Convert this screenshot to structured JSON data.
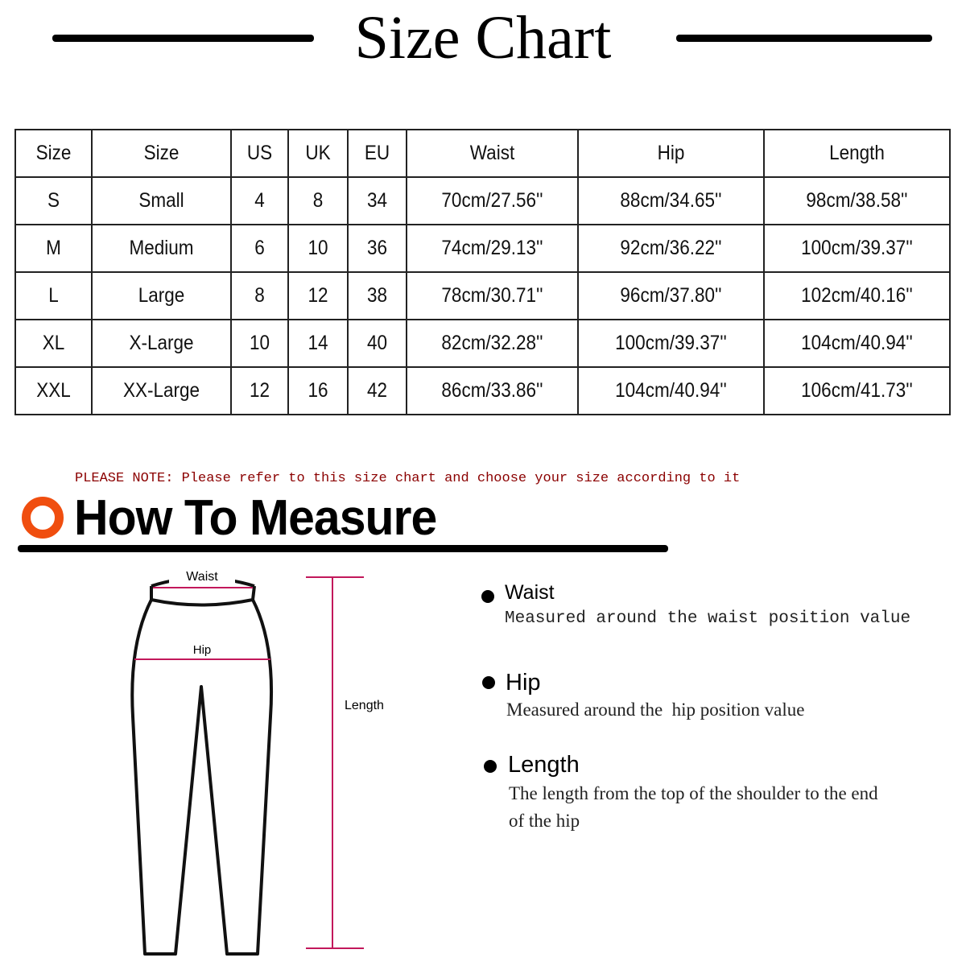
{
  "title": "Size Chart",
  "table": {
    "headers": [
      "Size",
      "Size",
      "US",
      "UK",
      "EU",
      "Waist",
      "Hip",
      "Length"
    ],
    "rows": [
      [
        "S",
        "Small",
        "4",
        "8",
        "34",
        "70cm/27.56''",
        "88cm/34.65''",
        "98cm/38.58''"
      ],
      [
        "M",
        "Medium",
        "6",
        "10",
        "36",
        "74cm/29.13''",
        "92cm/36.22''",
        "100cm/39.37''"
      ],
      [
        "L",
        "Large",
        "8",
        "12",
        "38",
        "78cm/30.71''",
        "96cm/37.80''",
        "102cm/40.16''"
      ],
      [
        "XL",
        "X-Large",
        "10",
        "14",
        "40",
        "82cm/32.28''",
        "100cm/39.37''",
        "104cm/40.94''"
      ],
      [
        "XXL",
        "XX-Large",
        "12",
        "16",
        "42",
        "86cm/33.86''",
        "104cm/40.94''",
        "106cm/41.73''"
      ]
    ]
  },
  "note": "PLEASE NOTE: Please refer to this size chart and choose your size according to it",
  "how_to_title": "How To Measure",
  "diagram": {
    "waist": "Waist",
    "hip": "Hip",
    "length": "Length"
  },
  "bullets": [
    {
      "title": "Waist",
      "desc": "Measured around the waist position value"
    },
    {
      "title": "Hip",
      "desc": "Measured around the  hip position value"
    },
    {
      "title": "Length",
      "desc": "The length from the top of the shoulder to the end of the hip"
    }
  ],
  "colors": {
    "accent": "#f04e0f",
    "note": "#8b0000",
    "measure_line": "#c2185b"
  }
}
